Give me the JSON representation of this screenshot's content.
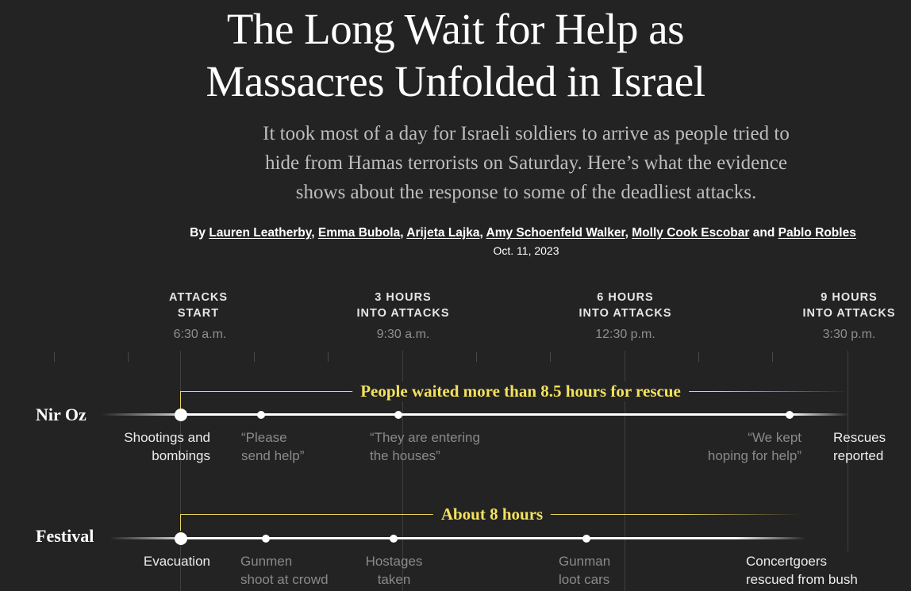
{
  "headline": {
    "line1": "The Long Wait for Help as",
    "line2": "Massacres Unfolded in Israel"
  },
  "dek": {
    "line1": "It took most of a day for Israeli soldiers to arrive as people tried to",
    "line2": "hide from Hamas terrorists on Saturday. Here’s what the evidence",
    "line3": "shows about the response to some of the deadliest attacks."
  },
  "byline": {
    "prefix": "By",
    "authors": [
      "Lauren Leatherby",
      "Emma Bubola",
      "Arijeta Lajka",
      "Amy Schoenfeld Walker",
      "Molly Cook Escobar",
      "Pablo Robles"
    ],
    "sep": ",",
    "and": "and",
    "date": "Oct. 11, 2023"
  },
  "timeline": {
    "columns": [
      {
        "line1": "ATTACKS",
        "line2": "START",
        "time": "6:30 a.m."
      },
      {
        "line1": "3 HOURS",
        "line2": "INTO ATTACKS",
        "time": "9:30 a.m."
      },
      {
        "line1": "6 HOURS",
        "line2": "INTO ATTACKS",
        "time": "12:30 p.m."
      },
      {
        "line1": "9 HOURS",
        "line2": "INTO ATTACKS",
        "time": "3:30 p.m."
      }
    ],
    "rows": {
      "nir_oz": {
        "label": "Nir Oz",
        "bracket": "People waited more than 8.5 hours for rescue",
        "events": [
          {
            "line1": "Shootings and",
            "line2": "bombings"
          },
          {
            "line1": "“Please",
            "line2": "send help”"
          },
          {
            "line1": "“They are entering",
            "line2": "the houses”"
          },
          {
            "line1": "“We kept",
            "line2": "hoping for help”"
          },
          {
            "line1": "Rescues",
            "line2": "reported"
          }
        ]
      },
      "festival": {
        "label": "Festival",
        "bracket": "About 8 hours",
        "events": [
          {
            "line1": "Evacuation",
            "line2": ""
          },
          {
            "line1": "Gunmen",
            "line2": "shoot at crowd"
          },
          {
            "line1": "Hostages",
            "line2": "taken"
          },
          {
            "line1": "Gunman",
            "line2": "loot cars"
          },
          {
            "line1": "Concertgoers",
            "line2": "rescued from bush"
          }
        ]
      }
    },
    "colors": {
      "background": "#232323",
      "highlight": "#f4e25c",
      "track": "#ffffff",
      "muted_text": "#8a8a8a"
    }
  }
}
